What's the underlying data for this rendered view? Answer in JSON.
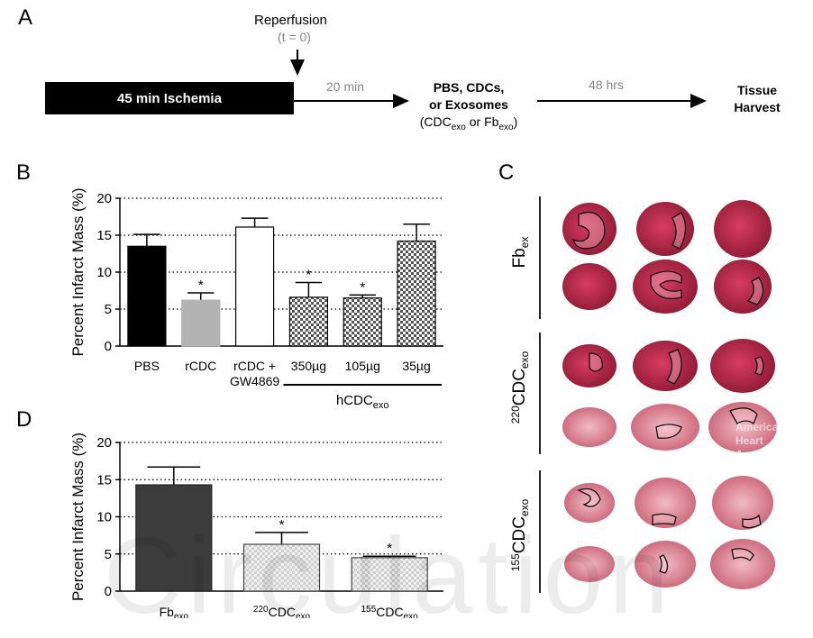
{
  "panels": {
    "a": "A",
    "b": "B",
    "c": "C",
    "d": "D"
  },
  "timeline": {
    "ischemia": "45 min Ischemia",
    "reperfusion": "Reperfusion",
    "t0": "(t = 0)",
    "interval1": "20 min",
    "treatment_line1": "PBS, CDCs,",
    "treatment_line2": "or Exosomes",
    "treatment_line3_pre": "(CDC",
    "treatment_line3_sub1": "exo",
    "treatment_line3_mid": " or Fb",
    "treatment_line3_sub2": "exo",
    "treatment_line3_post": ")",
    "interval2": "48 hrs",
    "harvest_line1": "Tissue",
    "harvest_line2": "Harvest"
  },
  "tissue_panel": {
    "labels": [
      {
        "pre": "",
        "main": "Fb",
        "sub": "ex"
      },
      {
        "pre": "220",
        "main": "CDC",
        "sub": "exo"
      },
      {
        "pre": "155",
        "main": "CDC",
        "sub": "exo"
      }
    ],
    "watermark_line1": "American",
    "watermark_line2": "Heart",
    "watermark_line3": "Association"
  },
  "watermark": "Circulation",
  "colors": {
    "pbs": "#000000",
    "rcdc": "#b3b3b3",
    "gw": "#ffffff",
    "checker": "#555555",
    "fb": "#3c3c3c",
    "light_checker": "#cfcfcf",
    "tissue_red": "#c22a4e",
    "tissue_pale": "#e29aa2"
  },
  "chart_data": [
    {
      "type": "bar",
      "panel": "B",
      "ylabel": "Percent Infarct Mass (%)",
      "ylim": [
        0,
        20
      ],
      "yticks": [
        "0",
        "5",
        "10",
        "15",
        "20"
      ],
      "grid": "dotted horizontal",
      "categories": [
        "PBS",
        "rCDC",
        "rCDC + GW4869",
        "350µg",
        "105µg",
        "35µg"
      ],
      "category_lines": [
        [
          "PBS"
        ],
        [
          "rCDC"
        ],
        [
          "rCDC +",
          "GW4869"
        ],
        [
          "350µg"
        ],
        [
          "105µg"
        ],
        [
          "35µg"
        ]
      ],
      "values": [
        13.5,
        6.2,
        16.1,
        6.6,
        6.5,
        14.2
      ],
      "errors": [
        1.6,
        1.0,
        1.2,
        2.0,
        0.4,
        2.3
      ],
      "significance": [
        "",
        "*",
        "",
        "*",
        "*",
        ""
      ],
      "fills": [
        "solid-black",
        "solid-grey",
        "white",
        "checker",
        "checker",
        "checker"
      ],
      "group_label": {
        "main": "hCDC",
        "sub": "exo",
        "covers": [
          3,
          5
        ]
      }
    },
    {
      "type": "bar",
      "panel": "D",
      "ylabel": "Percent Infarct Mass (%)",
      "ylim": [
        0,
        20
      ],
      "yticks": [
        "0",
        "5",
        "10",
        "15",
        "20"
      ],
      "grid": "dotted horizontal",
      "categories": [
        {
          "pre": "",
          "main": "Fb",
          "sub": "exo"
        },
        {
          "pre": "220",
          "main": "CDC",
          "sub": "exo"
        },
        {
          "pre": "155",
          "main": "CDC",
          "sub": "exo"
        }
      ],
      "values": [
        14.3,
        6.3,
        4.5
      ],
      "errors": [
        2.4,
        1.6,
        0.2
      ],
      "significance": [
        "",
        "*",
        "*"
      ],
      "fills": [
        "dark",
        "light-checker",
        "light-checker"
      ]
    }
  ]
}
